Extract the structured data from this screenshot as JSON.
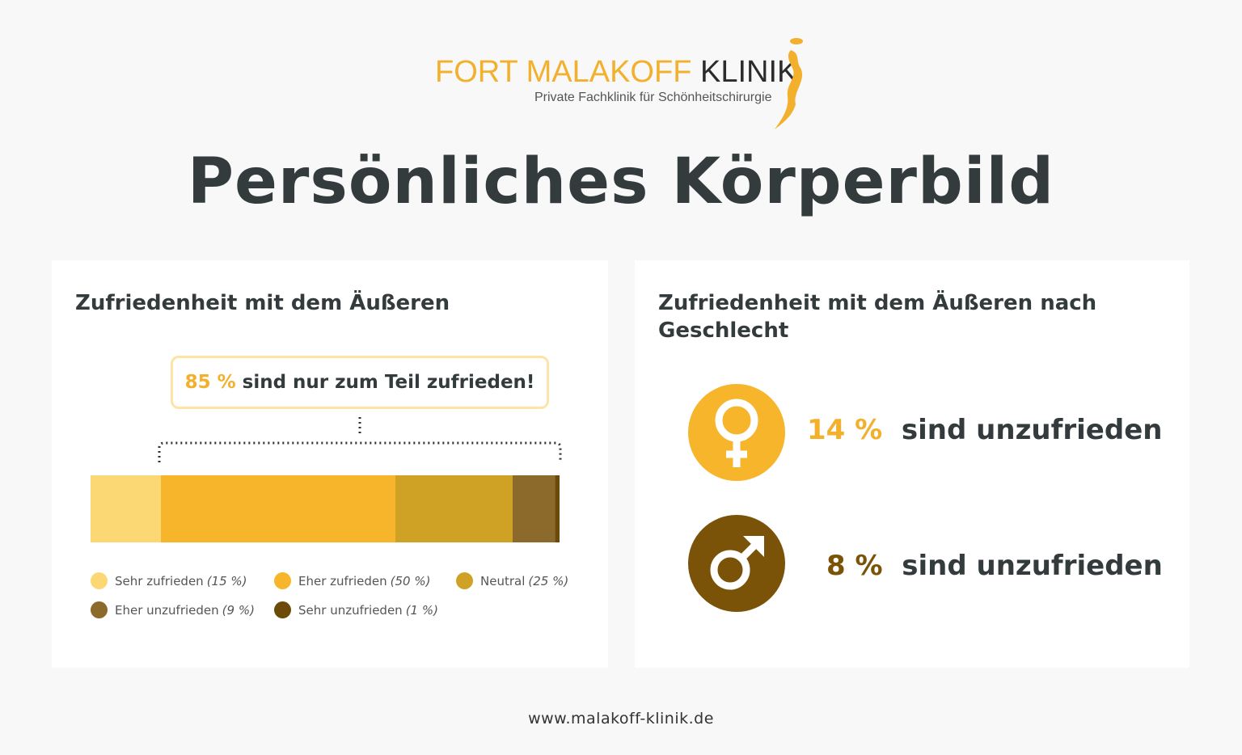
{
  "logo": {
    "brand": "FORT MALAKOFF",
    "brand_dark": "KLINIK",
    "tagline": "Private Fachklinik für Schönheitschirurgie"
  },
  "title": "Persönliches Körperbild",
  "left_card": {
    "title": "Zufriedenheit mit dem Äußeren",
    "callout_value": "85 %",
    "callout_text": "sind nur zum Teil zufrieden!"
  },
  "chart_data": {
    "type": "bar",
    "stacked": true,
    "title": "Zufriedenheit mit dem Äußeren",
    "categories": [
      "Sehr zufrieden",
      "Eher zufrieden",
      "Neutral",
      "Eher unzufrieden",
      "Sehr unzufrieden"
    ],
    "values": [
      15,
      50,
      25,
      9,
      1
    ],
    "pct_labels": [
      "(15 %)",
      "(50 %)",
      "(25 %)",
      "(9 %)",
      "(1 %)"
    ],
    "colors": [
      "#fcd874",
      "#f7b52b",
      "#cfa125",
      "#8b6a2b",
      "#6b4a0a"
    ],
    "xlim": [
      0,
      100
    ],
    "legend": "bottom"
  },
  "right_card": {
    "title_line1": "Zufriedenheit mit dem Äußeren nach",
    "title_line2": "Geschlecht",
    "female": {
      "value": "14 %",
      "text": "sind unzufrieden",
      "color": "#f7b52b"
    },
    "male": {
      "value": "8 %",
      "text": "sind unzufrieden",
      "color": "#7a5308"
    }
  },
  "footer": "www.malakoff-klinik.de"
}
